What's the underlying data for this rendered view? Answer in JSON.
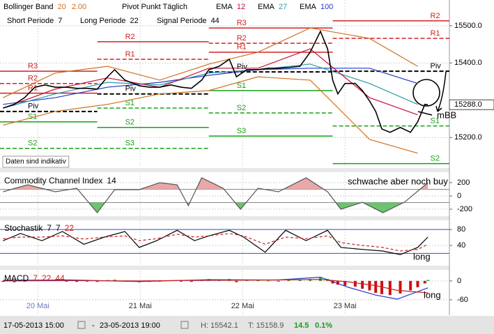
{
  "chart_data": [
    {
      "type": "line",
      "header_rows": [
        [
          {
            "label": "Bollinger Band",
            "params": [
              "20",
              "2.00"
            ],
            "color": "#d07020"
          },
          {
            "label": "Pivot Punkt Täglich"
          },
          {
            "label": "EMA",
            "params": [
              "12"
            ],
            "color": "#c8103c"
          },
          {
            "label": "EMA",
            "params": [
              "27"
            ],
            "color": "#2a9aa8"
          },
          {
            "label": "EMA",
            "params": [
              "100"
            ],
            "color": "#2438c8"
          }
        ],
        [
          {
            "label": "Short Periode",
            "params": [
              "7"
            ],
            "color": "#000000"
          },
          {
            "label": "Long Periode",
            "params": [
              "22"
            ],
            "color": "#000000"
          },
          {
            "label": "Signal Periode",
            "params": [
              "44"
            ],
            "color": "#000000"
          }
        ]
      ],
      "ylim": [
        15120,
        15569
      ],
      "yticks": [
        {
          "value": 15500,
          "label": "15500.0"
        },
        {
          "value": 15400,
          "label": "15400.0"
        },
        {
          "value": 15200,
          "label": "15200.0"
        }
      ],
      "grid": true,
      "series": [
        {
          "color": "#d07020",
          "x": [
            -0.34,
            0.17,
            0.68,
            1.19,
            1.67,
            2.15,
            2.66,
            3.24,
            3.71
          ],
          "values": [
            15307,
            15373,
            15391,
            15354,
            15397,
            15429,
            15494,
            15466,
            15391
          ]
        },
        {
          "color": "#d07020",
          "x": [
            -0.34,
            0.17,
            0.68,
            1.19,
            1.67,
            2.15,
            2.66,
            3.24,
            3.71
          ],
          "values": [
            15233,
            15270,
            15289,
            15317,
            15326,
            15363,
            15354,
            15195,
            15158
          ]
        },
        {
          "color": "#2438c8",
          "x": [
            -0.34,
            0.17,
            0.68,
            1.19,
            1.67,
            2.15,
            2.66,
            3.24,
            3.71
          ],
          "values": [
            15289,
            15307,
            15335,
            15348,
            15367,
            15382,
            15386,
            15386,
            15345
          ]
        },
        {
          "color": "#2a9aa8",
          "x": [
            -0.34,
            0.17,
            0.68,
            1.19,
            1.67,
            2.15,
            2.66,
            3.24,
            3.71
          ],
          "values": [
            15279,
            15317,
            15348,
            15341,
            15373,
            15382,
            15397,
            15345,
            15289
          ]
        },
        {
          "color": "#c8103c",
          "x": [
            -0.34,
            0.17,
            0.68,
            1.19,
            1.67,
            2.15,
            2.66,
            3.24,
            3.71
          ],
          "values": [
            15279,
            15330,
            15360,
            15335,
            15386,
            15386,
            15438,
            15307,
            15261
          ]
        },
        {
          "color": "#000000",
          "x": [
            -0.34,
            -0.23,
            -0.13,
            -0.03,
            0.07,
            0.17,
            0.28,
            0.38,
            0.48,
            0.58,
            0.68,
            0.75,
            0.85,
            0.99,
            1.09,
            1.19,
            1.3,
            1.4,
            1.5,
            1.6,
            1.67,
            1.77,
            1.87,
            1.94,
            2.04,
            2.15,
            2.25,
            2.35,
            2.45,
            2.56,
            2.66,
            2.76,
            2.83,
            2.88,
            2.93,
            3.0,
            3.1,
            3.17,
            3.24,
            3.3,
            3.36,
            3.44,
            3.54,
            3.64,
            3.71,
            3.78,
            3.81
          ],
          "values": [
            15279,
            15289,
            15307,
            15335,
            15341,
            15335,
            15335,
            15332,
            15332,
            15330,
            15363,
            15382,
            15354,
            15339,
            15335,
            15335,
            15341,
            15335,
            15332,
            15354,
            15382,
            15391,
            15410,
            15363,
            15382,
            15382,
            15386,
            15386,
            15388,
            15391,
            15429,
            15485,
            15438,
            15354,
            15317,
            15345,
            15345,
            15326,
            15298,
            15270,
            15223,
            15214,
            15227,
            15214,
            15242,
            15289,
            15288
          ]
        }
      ],
      "pivots": [
        {
          "start": -0.37,
          "end": 0.58,
          "levels": [
            {
              "name": "R3",
              "value": 15378
            },
            {
              "name": "R2",
              "value": 15345
            },
            {
              "name": "R1",
              "value": 15319
            },
            {
              "name": "Piv",
              "value": 15270
            },
            {
              "name": "S1",
              "value": 15242
            },
            {
              "name": "S2",
              "value": 15171
            }
          ]
        },
        {
          "start": 0.58,
          "end": 1.67,
          "levels": [
            {
              "name": "R2",
              "value": 15457
            },
            {
              "name": "R1",
              "value": 15410
            },
            {
              "name": "Piv",
              "value": 15317
            },
            {
              "name": "S1",
              "value": 15279
            },
            {
              "name": "S2",
              "value": 15227
            },
            {
              "name": "S3",
              "value": 15171
            }
          ]
        },
        {
          "start": 1.67,
          "end": 2.88,
          "levels": [
            {
              "name": "R3",
              "value": 15494
            },
            {
              "name": "R2",
              "value": 15453
            },
            {
              "name": "R1",
              "value": 15429
            },
            {
              "name": "Piv",
              "value": 15376
            },
            {
              "name": "S1",
              "value": 15326
            },
            {
              "name": "S2",
              "value": 15266
            },
            {
              "name": "S3",
              "value": 15204
            }
          ]
        },
        {
          "start": 2.88,
          "end": 4.02,
          "levels": [
            {
              "name": "R2",
              "value": 15513
            },
            {
              "name": "R1",
              "value": 15466
            },
            {
              "name": "Piv",
              "value": 15378
            },
            {
              "name": "S1",
              "value": 15231
            },
            {
              "name": "S2",
              "value": 15130
            }
          ]
        }
      ],
      "price_tag": {
        "value": 15288,
        "label": "15288.0"
      },
      "annotations": [
        "Daten sind indikativ",
        "mBB"
      ]
    },
    {
      "type": "line",
      "title": "Commodity Channel Index",
      "params": [
        "14"
      ],
      "param_colors": [
        "#000000"
      ],
      "ylim": [
        -305,
        347
      ],
      "yticks": [
        200,
        0,
        -200
      ],
      "levels": [
        100,
        -100
      ],
      "fill_colors": [
        "#e8a8a8",
        "#6cc46c"
      ],
      "series": [
        {
          "color": "#555555",
          "x": [
            -0.34,
            -0.1,
            0.17,
            0.38,
            0.58,
            0.75,
            0.99,
            1.19,
            1.36,
            1.47,
            1.6,
            1.81,
            1.98,
            2.15,
            2.35,
            2.62,
            2.83,
            2.96,
            3.17,
            3.37,
            3.58,
            3.81
          ],
          "values": [
            63,
            168,
            63,
            116,
            -253,
            95,
            95,
            200,
            168,
            -147,
            274,
            116,
            -200,
            116,
            63,
            274,
            63,
            -200,
            -95,
            -253,
            -95,
            200
          ]
        }
      ],
      "annotations": [
        "schwache aber noch buy"
      ]
    },
    {
      "type": "line",
      "title": "Stochastik",
      "params": [
        "7",
        "7",
        "22"
      ],
      "param_colors": [
        "#000000",
        "#000000",
        "#d02020"
      ],
      "ylim": [
        -9,
        103
      ],
      "yticks": [
        80,
        40
      ],
      "levels": [
        80,
        20
      ],
      "series": [
        {
          "color": "#000000",
          "x": [
            -0.34,
            -0.17,
            0.04,
            0.24,
            0.45,
            0.65,
            0.85,
            0.99,
            1.16,
            1.36,
            1.53,
            1.67,
            1.87,
            2.01,
            2.22,
            2.42,
            2.62,
            2.83,
            2.96,
            3.17,
            3.37,
            3.54,
            3.71,
            3.81
          ],
          "values": [
            52,
            70,
            52,
            75,
            43,
            61,
            75,
            35,
            52,
            78,
            52,
            64,
            78,
            61,
            23,
            78,
            52,
            78,
            35,
            30,
            26,
            17,
            35,
            61
          ]
        },
        {
          "color": "#d02020",
          "dashed": true,
          "x": [
            -0.34,
            -0.17,
            0.04,
            0.24,
            0.45,
            0.65,
            0.85,
            0.99,
            1.16,
            1.36,
            1.53,
            1.67,
            1.87,
            2.01,
            2.22,
            2.42,
            2.62,
            2.83,
            2.96,
            3.17,
            3.37,
            3.54,
            3.71,
            3.81
          ],
          "values": [
            57,
            61,
            61,
            64,
            56,
            61,
            64,
            52,
            57,
            68,
            61,
            64,
            70,
            64,
            43,
            61,
            57,
            64,
            47,
            40,
            35,
            26,
            30,
            43
          ]
        }
      ],
      "annotations": [
        "long"
      ]
    },
    {
      "type": "bar",
      "title": "MACD",
      "params": [
        "7",
        "22",
        "44"
      ],
      "param_colors": [
        "#d02020",
        "#d02020",
        "#d02020"
      ],
      "ylim": [
        -109,
        33
      ],
      "yticks": [
        0,
        -60
      ],
      "xlim": [
        -0.37,
        4.02
      ],
      "xticks": [
        {
          "value": 0,
          "label": "20 Mai"
        },
        {
          "value": 1,
          "label": "21 Mai"
        },
        {
          "value": 2,
          "label": "22 Mai"
        },
        {
          "value": 3,
          "label": "23 Mai"
        }
      ],
      "series": [
        {
          "type": "bar",
          "color": "#20a020",
          "negative_color": "#d01010",
          "x": [
            -0.34,
            -0.23,
            -0.13,
            -0.03,
            0.07,
            0.17,
            0.28,
            0.38,
            0.48,
            0.58,
            0.68,
            0.75,
            0.85,
            0.99,
            1.09,
            1.19,
            1.3,
            1.4,
            1.5,
            1.6,
            1.67,
            1.77,
            1.87,
            1.94,
            2.04,
            2.15,
            2.25,
            2.35,
            2.45,
            2.56,
            2.66,
            2.76,
            2.83,
            2.88,
            2.93,
            3.0,
            3.1,
            3.17,
            3.24,
            3.3,
            3.36,
            3.44,
            3.54,
            3.64,
            3.71,
            3.78,
            3.81
          ],
          "values": [
            -3,
            -4,
            -2,
            2,
            3,
            2,
            -2,
            -3,
            -2,
            -3,
            3,
            4,
            -2,
            -4,
            -3,
            -2,
            2,
            -2,
            -3,
            3,
            6,
            5,
            6,
            -4,
            3,
            2,
            1,
            -2,
            2,
            3,
            6,
            10,
            6,
            -8,
            -12,
            -15,
            -18,
            -25,
            -30,
            -38,
            -42,
            -45,
            -40,
            -30,
            -20,
            -8,
            3
          ]
        },
        {
          "type": "line",
          "color": "#2438c8",
          "x": [
            -0.34,
            0.31,
            0.99,
            1.67,
            2.35,
            2.76,
            3.03,
            3.3,
            3.51,
            3.81
          ],
          "values": [
            2,
            3,
            -2,
            4,
            3,
            12,
            -20,
            -45,
            -58,
            -22
          ]
        },
        {
          "type": "line",
          "color": "#d02020",
          "x": [
            -0.34,
            0.31,
            0.99,
            1.67,
            2.35,
            2.76,
            3.03,
            3.3,
            3.51,
            3.81
          ],
          "values": [
            0,
            1,
            0,
            2,
            3,
            5,
            -3,
            -15,
            -30,
            -38
          ]
        }
      ],
      "annotations": [
        "long"
      ]
    }
  ],
  "footer": {
    "from": "17-05-2013 15:00",
    "separator": "-",
    "to": "23-05-2013 19:00",
    "high": "H: 15542.1",
    "low": "T: 15158.9",
    "change": "14.5",
    "change_pct": "0.1%"
  }
}
